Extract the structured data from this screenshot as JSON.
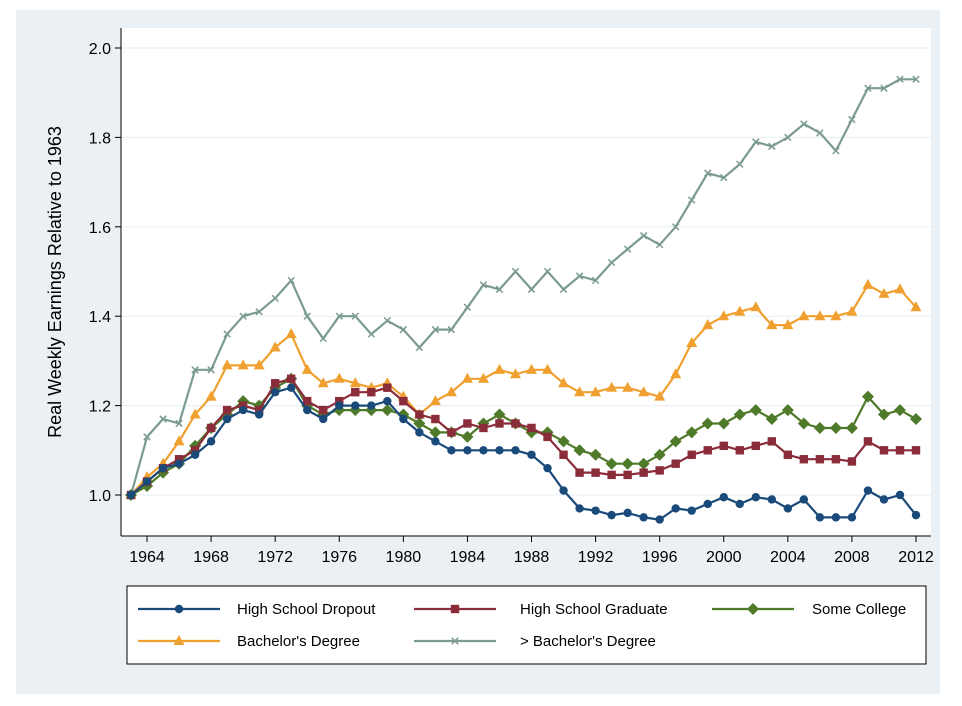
{
  "chart_data": {
    "type": "line",
    "title": "",
    "xlabel": "",
    "ylabel": "Real Weekly Earnings Relative to 1963",
    "xlim": [
      1963,
      2012
    ],
    "ylim": [
      0.9,
      2.0
    ],
    "x_ticks": [
      "1964",
      "1968",
      "1972",
      "1976",
      "1980",
      "1984",
      "1988",
      "1992",
      "1996",
      "2000",
      "2004",
      "2008",
      "2012"
    ],
    "y_ticks": [
      "1.0",
      "1.2",
      "1.4",
      "1.6",
      "1.8",
      "2.0"
    ],
    "grid": true,
    "legend_placement": "bottom",
    "x": [
      1963,
      1964,
      1965,
      1966,
      1967,
      1968,
      1969,
      1970,
      1971,
      1972,
      1973,
      1974,
      1975,
      1976,
      1977,
      1978,
      1979,
      1980,
      1981,
      1982,
      1983,
      1984,
      1985,
      1986,
      1987,
      1988,
      1989,
      1990,
      1991,
      1992,
      1993,
      1994,
      1995,
      1996,
      1997,
      1998,
      1999,
      2000,
      2001,
      2002,
      2003,
      2004,
      2005,
      2006,
      2007,
      2008,
      2009,
      2010,
      2011,
      2012
    ],
    "series": [
      {
        "name": "High School Dropout",
        "color": "#1a4a7a",
        "marker": "circle",
        "values": [
          1.0,
          1.03,
          1.06,
          1.07,
          1.09,
          1.12,
          1.17,
          1.19,
          1.18,
          1.23,
          1.24,
          1.19,
          1.17,
          1.2,
          1.2,
          1.2,
          1.21,
          1.17,
          1.14,
          1.12,
          1.1,
          1.1,
          1.1,
          1.1,
          1.1,
          1.09,
          1.06,
          1.01,
          0.97,
          0.965,
          0.955,
          0.96,
          0.95,
          0.945,
          0.97,
          0.965,
          0.98,
          0.995,
          0.98,
          0.995,
          0.99,
          0.97,
          0.99,
          0.95,
          0.95,
          0.95,
          1.01,
          0.99,
          1.0,
          0.955
        ]
      },
      {
        "name": "High School Graduate",
        "color": "#8b2c3a",
        "marker": "square",
        "values": [
          1.0,
          1.03,
          1.06,
          1.08,
          1.1,
          1.15,
          1.19,
          1.2,
          1.19,
          1.25,
          1.26,
          1.21,
          1.19,
          1.21,
          1.23,
          1.23,
          1.24,
          1.21,
          1.18,
          1.17,
          1.14,
          1.16,
          1.15,
          1.16,
          1.16,
          1.15,
          1.13,
          1.09,
          1.05,
          1.05,
          1.045,
          1.045,
          1.05,
          1.055,
          1.07,
          1.09,
          1.1,
          1.11,
          1.1,
          1.11,
          1.12,
          1.09,
          1.08,
          1.08,
          1.08,
          1.075,
          1.12,
          1.1,
          1.1,
          1.1
        ]
      },
      {
        "name": "Some College",
        "color": "#4e7a2a",
        "marker": "diamond",
        "values": [
          1.0,
          1.02,
          1.05,
          1.07,
          1.11,
          1.15,
          1.18,
          1.21,
          1.2,
          1.24,
          1.26,
          1.2,
          1.18,
          1.19,
          1.19,
          1.19,
          1.19,
          1.18,
          1.16,
          1.14,
          1.14,
          1.13,
          1.16,
          1.18,
          1.16,
          1.14,
          1.14,
          1.12,
          1.1,
          1.09,
          1.07,
          1.07,
          1.07,
          1.09,
          1.12,
          1.14,
          1.16,
          1.16,
          1.18,
          1.19,
          1.17,
          1.19,
          1.16,
          1.15,
          1.15,
          1.15,
          1.22,
          1.18,
          1.19,
          1.17
        ]
      },
      {
        "name": "Bachelor's Degree",
        "color": "#f0a030",
        "marker": "triangle",
        "values": [
          1.0,
          1.04,
          1.07,
          1.12,
          1.18,
          1.22,
          1.29,
          1.29,
          1.29,
          1.33,
          1.36,
          1.28,
          1.25,
          1.26,
          1.25,
          1.24,
          1.25,
          1.22,
          1.18,
          1.21,
          1.23,
          1.26,
          1.26,
          1.28,
          1.27,
          1.28,
          1.28,
          1.25,
          1.23,
          1.23,
          1.24,
          1.24,
          1.23,
          1.22,
          1.27,
          1.34,
          1.38,
          1.4,
          1.41,
          1.42,
          1.38,
          1.38,
          1.4,
          1.4,
          1.4,
          1.41,
          1.47,
          1.45,
          1.46,
          1.42
        ]
      },
      {
        "name": "> Bachelor's Degree",
        "color": "#7a9a92",
        "marker": "x",
        "values": [
          1.0,
          1.13,
          1.17,
          1.16,
          1.28,
          1.28,
          1.36,
          1.4,
          1.41,
          1.44,
          1.48,
          1.4,
          1.35,
          1.4,
          1.4,
          1.36,
          1.39,
          1.37,
          1.33,
          1.37,
          1.37,
          1.42,
          1.47,
          1.46,
          1.5,
          1.46,
          1.5,
          1.46,
          1.49,
          1.48,
          1.52,
          1.55,
          1.58,
          1.56,
          1.6,
          1.66,
          1.72,
          1.71,
          1.74,
          1.79,
          1.78,
          1.8,
          1.83,
          1.81,
          1.77,
          1.84,
          1.91,
          1.91,
          1.93,
          1.93
        ]
      }
    ]
  }
}
